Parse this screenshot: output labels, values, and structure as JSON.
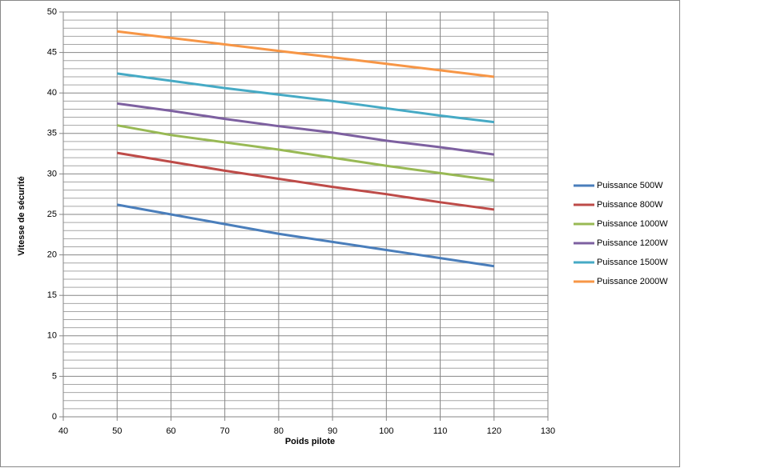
{
  "chart_data": {
    "type": "line",
    "x_label": "Poids pilote",
    "y_label": "Vitesse de sécurité",
    "x": [
      50,
      60,
      70,
      80,
      90,
      100,
      110,
      120
    ],
    "series": [
      {
        "name": "Puissance 500W",
        "color": "#4a7ebb",
        "values": [
          26.2,
          25.0,
          23.8,
          22.6,
          21.6,
          20.6,
          19.6,
          18.6
        ]
      },
      {
        "name": "Puissance 800W",
        "color": "#be4b48",
        "values": [
          32.6,
          31.5,
          30.4,
          29.4,
          28.4,
          27.5,
          26.5,
          25.6
        ]
      },
      {
        "name": "Puissance 1000W",
        "color": "#98b954",
        "values": [
          36.0,
          34.8,
          33.9,
          33.0,
          32.0,
          31.0,
          30.1,
          29.2
        ]
      },
      {
        "name": "Puissance 1200W",
        "color": "#7d60a0",
        "values": [
          38.7,
          37.8,
          36.8,
          35.9,
          35.1,
          34.1,
          33.3,
          32.4
        ]
      },
      {
        "name": "Puissance 1500W",
        "color": "#46aac5",
        "values": [
          42.4,
          41.5,
          40.6,
          39.8,
          39.0,
          38.1,
          37.2,
          36.4
        ]
      },
      {
        "name": "Puissance 2000W",
        "color": "#f79646",
        "values": [
          47.6,
          46.8,
          46.0,
          45.2,
          44.4,
          43.6,
          42.8,
          42.0
        ]
      }
    ],
    "xlim": [
      40,
      130
    ],
    "xticks": [
      40,
      50,
      60,
      70,
      80,
      90,
      100,
      110,
      120,
      130
    ],
    "ylim": [
      0,
      50
    ],
    "yticks": [
      0,
      5,
      10,
      15,
      20,
      25,
      30,
      35,
      40,
      45,
      50
    ],
    "grid": true,
    "minor_grid": true,
    "legend": "right"
  }
}
